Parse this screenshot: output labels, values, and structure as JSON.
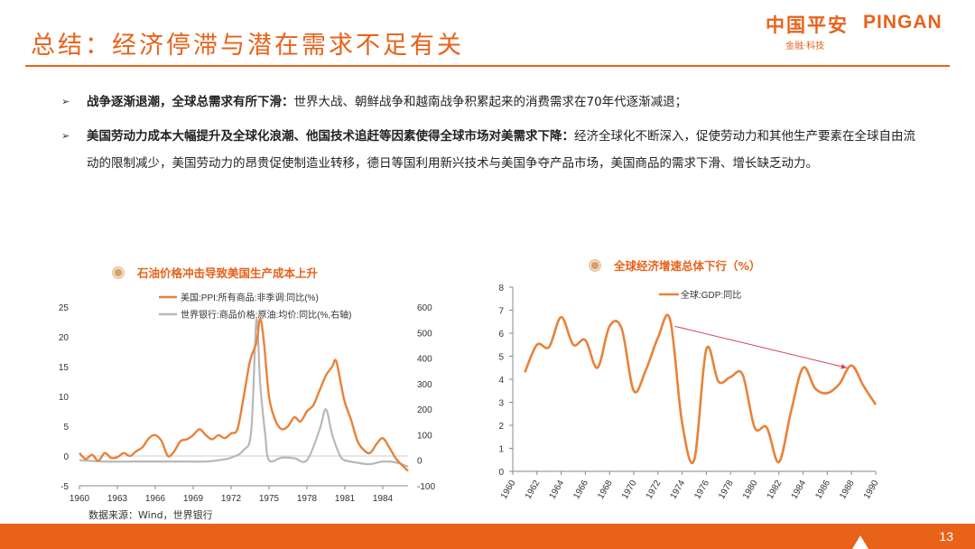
{
  "slide": {
    "title": "总结：经济停滞与潜在需求不足有关",
    "page_number": "13",
    "logo_cn": "中国平安",
    "logo_en": "PINGAN",
    "logo_tagline": "金融·科技",
    "accent_color": "#e8621a",
    "bullets": [
      {
        "bold": "战争逐渐退潮，全球总需求有所下滑：",
        "text": "世界大战、朝鲜战争和越南战争积累起来的消费需求在70年代逐渐减退；"
      },
      {
        "bold": "美国劳动力成本大幅提升及全球化浪潮、他国技术追赶等因素使得全球市场对美需求下降：",
        "text": "经济全球化不断深入，促使劳动力和其他生产要素在全球自由流动的限制减少，美国劳动力的昂贵促使制造业转移，德日等国利用新兴技术与美国争夺产品市场，美国商品的需求下滑、增长缺乏动力。"
      }
    ],
    "source": "数据来源：Wind，世界银行"
  },
  "chart_data": [
    {
      "type": "line",
      "title": "石油价格冲击导致美国生产成本上升",
      "x_range": [
        1960,
        1986
      ],
      "x_ticks": [
        "1960",
        "1963",
        "1966",
        "1969",
        "1972",
        "1975",
        "1978",
        "1981",
        "1984"
      ],
      "ylim": [
        -5,
        25
      ],
      "y_ticks": [
        "-5",
        "0",
        "5",
        "10",
        "15",
        "20",
        "25"
      ],
      "y2lim": [
        -100,
        600
      ],
      "y2_ticks": [
        "-100",
        "0",
        "100",
        "200",
        "300",
        "400",
        "500",
        "600"
      ],
      "legend_position": "top",
      "series": [
        {
          "name": "美国:PPI:所有商品:非季调:同比(%)",
          "color": "#e8823a",
          "axis": "left",
          "points": [
            [
              1960,
              0.5
            ],
            [
              1960.5,
              -0.5
            ],
            [
              1961,
              0.2
            ],
            [
              1961.5,
              -0.8
            ],
            [
              1962,
              0.5
            ],
            [
              1962.5,
              -0.3
            ],
            [
              1963,
              -0.2
            ],
            [
              1963.5,
              0.5
            ],
            [
              1964,
              0
            ],
            [
              1964.5,
              0.8
            ],
            [
              1965,
              1.5
            ],
            [
              1965.5,
              3
            ],
            [
              1966,
              3.5
            ],
            [
              1966.5,
              2.5
            ],
            [
              1967,
              0
            ],
            [
              1967.5,
              0.8
            ],
            [
              1968,
              2.5
            ],
            [
              1968.5,
              2.8
            ],
            [
              1969,
              3.5
            ],
            [
              1969.5,
              4.5
            ],
            [
              1970,
              3.5
            ],
            [
              1970.5,
              2.8
            ],
            [
              1971,
              3.5
            ],
            [
              1971.5,
              3
            ],
            [
              1972,
              3.8
            ],
            [
              1972.5,
              4.5
            ],
            [
              1973,
              10
            ],
            [
              1973.5,
              16
            ],
            [
              1974,
              19
            ],
            [
              1974.3,
              23
            ],
            [
              1974.6,
              19
            ],
            [
              1975,
              10
            ],
            [
              1975.5,
              6
            ],
            [
              1976,
              4.5
            ],
            [
              1976.5,
              5
            ],
            [
              1977,
              6.5
            ],
            [
              1977.5,
              5.8
            ],
            [
              1978,
              7.5
            ],
            [
              1978.5,
              8.5
            ],
            [
              1979,
              11
            ],
            [
              1979.5,
              13.5
            ],
            [
              1980,
              15
            ],
            [
              1980.3,
              16
            ],
            [
              1980.7,
              12
            ],
            [
              1981,
              9
            ],
            [
              1981.5,
              6
            ],
            [
              1982,
              2.5
            ],
            [
              1982.5,
              1
            ],
            [
              1983,
              0.5
            ],
            [
              1983.5,
              2
            ],
            [
              1984,
              3
            ],
            [
              1984.5,
              1.5
            ],
            [
              1985,
              -0.3
            ],
            [
              1985.5,
              -1.5
            ],
            [
              1986,
              -2.5
            ]
          ]
        },
        {
          "name": "世界银行:商品价格:原油:均价:同比(%,右轴)",
          "color": "#b8b8b8",
          "axis": "right",
          "points": [
            [
              1960,
              0
            ],
            [
              1962,
              -5
            ],
            [
              1964,
              -5
            ],
            [
              1966,
              -5
            ],
            [
              1968,
              -5
            ],
            [
              1970,
              -5
            ],
            [
              1971,
              0
            ],
            [
              1972,
              10
            ],
            [
              1973,
              40
            ],
            [
              1973.6,
              120
            ],
            [
              1974,
              550
            ],
            [
              1974.3,
              300
            ],
            [
              1974.7,
              100
            ],
            [
              1975,
              0
            ],
            [
              1976,
              10
            ],
            [
              1977,
              8
            ],
            [
              1978,
              0
            ],
            [
              1979,
              120
            ],
            [
              1979.5,
              200
            ],
            [
              1980,
              100
            ],
            [
              1980.6,
              20
            ],
            [
              1981,
              0
            ],
            [
              1982,
              -10
            ],
            [
              1983,
              -15
            ],
            [
              1984,
              -5
            ],
            [
              1985,
              -8
            ],
            [
              1986,
              -25
            ]
          ]
        }
      ]
    },
    {
      "type": "line",
      "title": "全球经济增速总体下行（%）",
      "x_range": [
        1960,
        1990
      ],
      "x_ticks": [
        "1960",
        "1962",
        "1964",
        "1966",
        "1968",
        "1970",
        "1972",
        "1974",
        "1976",
        "1978",
        "1980",
        "1982",
        "1984",
        "1986",
        "1988",
        "1990"
      ],
      "ylim": [
        0,
        8
      ],
      "y_ticks": [
        "0",
        "1",
        "2",
        "3",
        "4",
        "5",
        "6",
        "7",
        "8"
      ],
      "legend_position": "top-left",
      "annotation": "trend arrow from 1973 to 1988",
      "series": [
        {
          "name": "全球:GDP:同比",
          "color": "#e8823a",
          "x": [
            1961,
            1962,
            1963,
            1964,
            1965,
            1966,
            1967,
            1968,
            1969,
            1970,
            1971,
            1972,
            1973,
            1974,
            1975,
            1976,
            1977,
            1978,
            1979,
            1980,
            1981,
            1982,
            1983,
            1984,
            1985,
            1986,
            1987,
            1988,
            1989,
            1990
          ],
          "values": [
            4.3,
            5.5,
            5.4,
            6.7,
            5.5,
            5.7,
            4.5,
            6.3,
            6.2,
            3.5,
            4.4,
            5.8,
            6.6,
            2.1,
            0.5,
            5.3,
            3.9,
            4.1,
            4.2,
            1.9,
            1.9,
            0.4,
            2.6,
            4.5,
            3.6,
            3.4,
            3.8,
            4.6,
            3.7,
            2.9
          ]
        }
      ]
    }
  ]
}
